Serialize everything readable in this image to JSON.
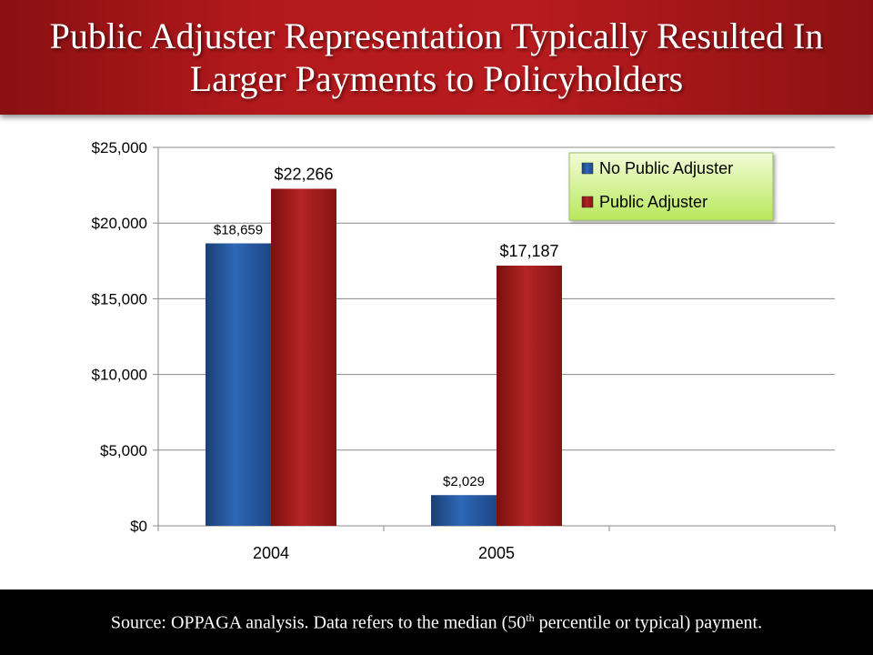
{
  "header": {
    "title_line1": "Public Adjuster Representation Typically Resulted In",
    "title_line2": "Larger Payments to Policyholders"
  },
  "chart_data": {
    "type": "bar",
    "categories": [
      "2004",
      "2005",
      ""
    ],
    "series": [
      {
        "name": "No Public Adjuster",
        "values": [
          18659,
          2029,
          null
        ],
        "labels": [
          "$18,659",
          "$2,029",
          ""
        ],
        "color": "#1f4e8c"
      },
      {
        "name": "Public Adjuster",
        "values": [
          22266,
          17187,
          null
        ],
        "labels": [
          "$22,266",
          "$17,187",
          ""
        ],
        "color": "#a01a1c"
      }
    ],
    "y_ticks": [
      "$0",
      "$5,000",
      "$10,000",
      "$15,000",
      "$20,000",
      "$25,000"
    ],
    "ylim": [
      0,
      25000
    ],
    "grid": true,
    "legend_position": "top-right"
  },
  "footer": {
    "source_prefix": "Source:  OPPAGA analysis.  Data refers to the median (50",
    "source_sup": "th",
    "source_suffix": " percentile or typical) payment."
  },
  "colors": {
    "title_bg": "#b3191c",
    "legend_bg": "#ccf07a",
    "footer_bg": "#000000"
  }
}
